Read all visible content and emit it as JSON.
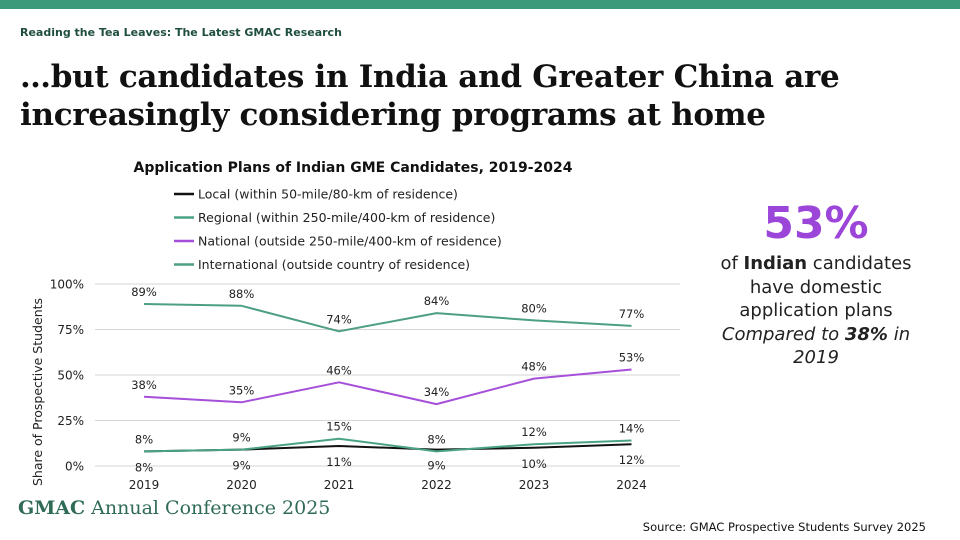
{
  "header": {
    "kicker": "Reading the Tea Leaves: The Latest GMAC Research",
    "headline": "…but candidates in India and Greater China are increasingly considering programs at home"
  },
  "stat": {
    "big": "53%",
    "line1_pre": "of ",
    "line1_bold": "Indian",
    "line1_post": " candidates",
    "line2": "have domestic",
    "line3": "application plans",
    "cmp_pre": "Compared to ",
    "cmp_bold": "38%",
    "cmp_post": " in",
    "cmp_year": "2019",
    "color": "#9b45d9"
  },
  "footer": {
    "brand_bold": "GMAC",
    "brand_rest": " Annual Conference 2025",
    "source": "Source: GMAC Prospective Students Survey 2025"
  },
  "chart_data": {
    "type": "line",
    "title": "Application Plans of Indian GME Candidates, 2019-2024",
    "xlabel": "",
    "ylabel": "Share of Prospective Students",
    "x": [
      "2019",
      "2020",
      "2021",
      "2022",
      "2023",
      "2024"
    ],
    "ylim": [
      0,
      100
    ],
    "yticks": [
      0,
      25,
      50,
      75,
      100
    ],
    "ytick_labels": [
      "0%",
      "25%",
      "50%",
      "75%",
      "100%"
    ],
    "grid": true,
    "legend_position": "top",
    "series": [
      {
        "name": "Local (within 50-mile/80-km of residence)",
        "color": "#111111",
        "values": [
          8,
          9,
          11,
          9,
          10,
          12
        ],
        "labels": [
          "8%",
          "9%",
          "11%",
          "9%",
          "10%",
          "12%"
        ],
        "label_pos": "below"
      },
      {
        "name": "Regional (within 250-mile/400-km of residence)",
        "color": "#4aa383",
        "values": [
          8,
          9,
          15,
          8,
          12,
          14
        ],
        "labels": [
          "8%",
          "9%",
          "15%",
          "8%",
          "12%",
          "14%"
        ],
        "label_pos": "above"
      },
      {
        "name": "National (outside 250-mile/400-km of residence)",
        "color": "#a64fd9",
        "values": [
          38,
          35,
          46,
          34,
          48,
          53
        ],
        "labels": [
          "38%",
          "35%",
          "46%",
          "34%",
          "48%",
          "53%"
        ],
        "label_pos": "above"
      },
      {
        "name": "International (outside country of residence)",
        "color": "#4d9e86",
        "values": [
          89,
          88,
          74,
          84,
          80,
          77
        ],
        "labels": [
          "89%",
          "88%",
          "74%",
          "84%",
          "80%",
          "77%"
        ],
        "label_pos": "above"
      }
    ]
  }
}
